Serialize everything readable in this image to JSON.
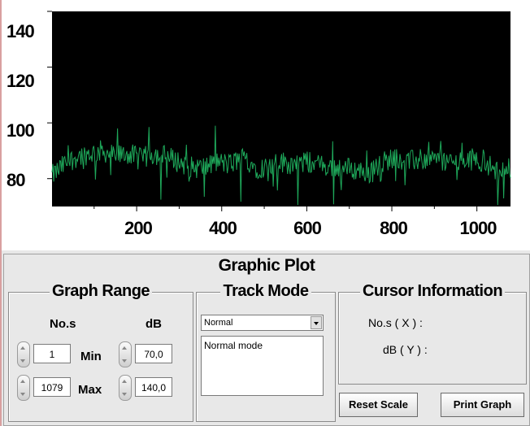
{
  "chart_data": {
    "type": "line",
    "title": "",
    "xlabel": "",
    "ylabel": "",
    "x_ticks": [
      "200",
      "400",
      "600",
      "800",
      "1000"
    ],
    "y_ticks": [
      "140",
      "120",
      "100",
      "80"
    ],
    "xlim": [
      1,
      1079
    ],
    "ylim": [
      70,
      140
    ],
    "background": "#000000",
    "series": [
      {
        "color": "#1ea85a",
        "x": [
          1,
          30,
          60,
          90,
          120,
          150,
          180,
          210,
          240,
          270,
          300,
          330,
          360,
          390,
          420,
          450,
          480,
          510,
          540,
          570,
          600,
          630,
          660,
          690,
          720,
          750,
          780,
          810,
          840,
          870,
          900,
          930,
          960,
          990,
          1020,
          1050,
          1079
        ],
        "y": [
          81,
          85,
          88,
          89,
          90,
          88,
          89,
          87,
          89,
          88,
          86,
          84,
          84,
          86,
          85,
          88,
          84,
          84,
          86,
          85,
          86,
          85,
          84,
          84,
          83,
          82,
          86,
          88,
          86,
          87,
          87,
          86,
          86,
          87,
          86,
          82,
          86
        ]
      }
    ]
  },
  "panel": {
    "title": "Graphic Plot"
  },
  "graph_range": {
    "title": "Graph Range",
    "col_x_label": "No.s",
    "col_y_label": "dB",
    "min_label": "Min",
    "max_label": "Max",
    "x_min": "1",
    "x_max": "1079",
    "y_min": "70,0",
    "y_max": "140,0"
  },
  "track_mode": {
    "title": "Track Mode",
    "selected": "Normal",
    "description": "Normal mode"
  },
  "cursor_info": {
    "title": "Cursor Information",
    "x_label": "No.s ( X ) :",
    "y_label": "dB ( Y ) :"
  },
  "buttons": {
    "reset": "Reset Scale",
    "print": "Print Graph"
  }
}
